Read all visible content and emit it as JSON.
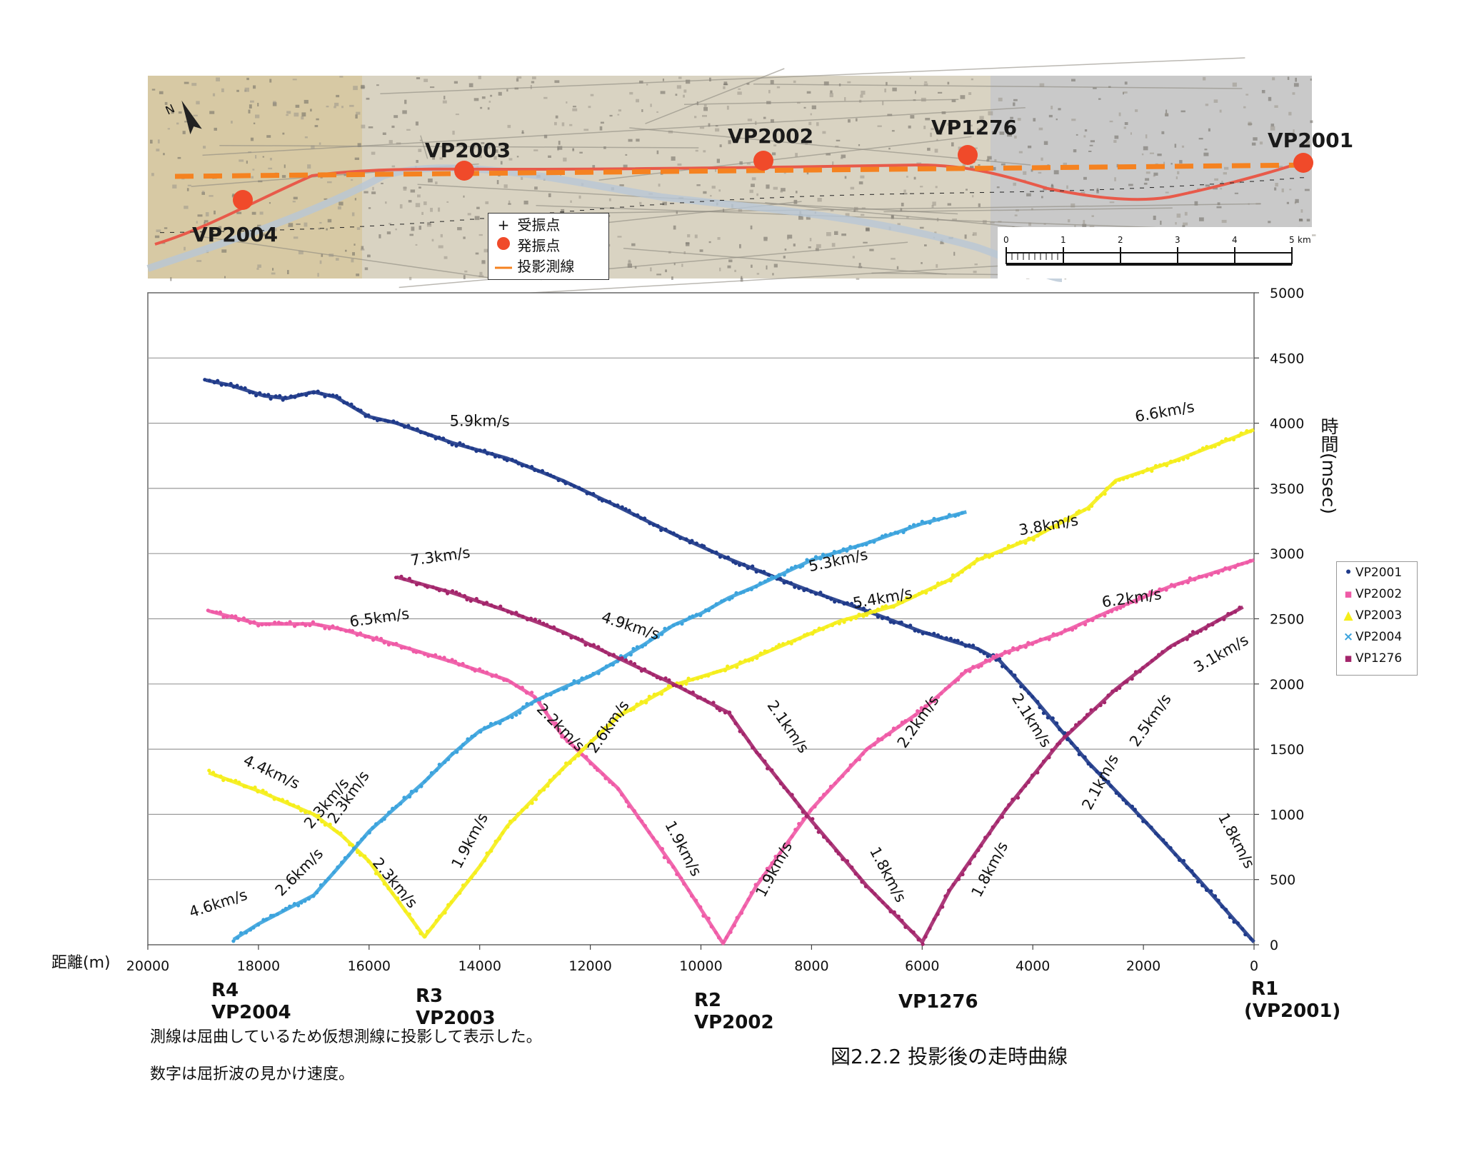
{
  "map": {
    "north_label": "N",
    "vp_labels": [
      "VP2004",
      "VP2003",
      "VP2002",
      "VP1276",
      "VP2001"
    ],
    "legend": {
      "receiver_symbol": "+",
      "receiver_label": "受振点",
      "source_label": "発振点",
      "line_label": "投影測線"
    },
    "scale": {
      "ticks": [
        "0",
        "1",
        "2",
        "3",
        "4",
        "5"
      ],
      "unit": "km"
    },
    "colors": {
      "source": "#f04a2a",
      "projected_line": "#f58220",
      "route": "#e85a4a"
    }
  },
  "chart_data": {
    "type": "scatter",
    "title": "",
    "xlabel": "距離(m)",
    "ylabel": "時間(msec)",
    "x_reversed": true,
    "xlim": [
      20000,
      0
    ],
    "ylim": [
      0,
      5000
    ],
    "x_ticks": [
      20000,
      18000,
      16000,
      14000,
      12000,
      10000,
      8000,
      6000,
      4000,
      2000,
      0
    ],
    "y_ticks": [
      0,
      500,
      1000,
      1500,
      2000,
      2500,
      3000,
      3500,
      4000,
      4500,
      5000
    ],
    "y_axis_side": "right",
    "grid": "horizontal",
    "legend_position": "right",
    "series": [
      {
        "name": "VP2001",
        "color": "#1f3a8a",
        "marker": "•",
        "points": [
          [
            18950,
            4330
          ],
          [
            18500,
            4290
          ],
          [
            17900,
            4210
          ],
          [
            17500,
            4190
          ],
          [
            17000,
            4240
          ],
          [
            16600,
            4200
          ],
          [
            16000,
            4050
          ],
          [
            15500,
            4000
          ],
          [
            14500,
            3850
          ],
          [
            13500,
            3730
          ],
          [
            12500,
            3560
          ],
          [
            11500,
            3360
          ],
          [
            10500,
            3150
          ],
          [
            9500,
            2960
          ],
          [
            8500,
            2790
          ],
          [
            8000,
            2710
          ],
          [
            7000,
            2560
          ],
          [
            6000,
            2400
          ],
          [
            5000,
            2270
          ],
          [
            4600,
            2180
          ],
          [
            4000,
            1900
          ],
          [
            3000,
            1400
          ],
          [
            2000,
            960
          ],
          [
            1000,
            500
          ],
          [
            0,
            20
          ]
        ]
      },
      {
        "name": "VP2002",
        "color": "#ef5aa6",
        "marker": "▪",
        "points": [
          [
            18900,
            2560
          ],
          [
            18000,
            2460
          ],
          [
            17000,
            2460
          ],
          [
            16500,
            2420
          ],
          [
            15500,
            2300
          ],
          [
            14500,
            2170
          ],
          [
            13500,
            2030
          ],
          [
            13000,
            1900
          ],
          [
            12500,
            1600
          ],
          [
            11500,
            1200
          ],
          [
            10500,
            600
          ],
          [
            9600,
            10
          ],
          [
            9000,
            450
          ],
          [
            8000,
            1040
          ],
          [
            7000,
            1500
          ],
          [
            6000,
            1800
          ],
          [
            5200,
            2100
          ],
          [
            4500,
            2240
          ],
          [
            3500,
            2390
          ],
          [
            2500,
            2580
          ],
          [
            1500,
            2750
          ],
          [
            0,
            2950
          ]
        ]
      },
      {
        "name": "VP2003",
        "color": "#f5ee1a",
        "marker": "▲",
        "points": [
          [
            18900,
            1320
          ],
          [
            18000,
            1180
          ],
          [
            17000,
            1000
          ],
          [
            16500,
            840
          ],
          [
            16000,
            640
          ],
          [
            15000,
            60
          ],
          [
            14000,
            600
          ],
          [
            13500,
            910
          ],
          [
            12500,
            1350
          ],
          [
            11500,
            1750
          ],
          [
            10500,
            1990
          ],
          [
            9500,
            2120
          ],
          [
            8500,
            2300
          ],
          [
            7500,
            2480
          ],
          [
            6500,
            2600
          ],
          [
            5500,
            2800
          ],
          [
            5000,
            2950
          ],
          [
            4000,
            3120
          ],
          [
            3000,
            3350
          ],
          [
            2500,
            3560
          ],
          [
            1500,
            3700
          ],
          [
            0,
            3950
          ]
        ]
      },
      {
        "name": "VP2004",
        "color": "#3ba3dd",
        "marker": "×",
        "points": [
          [
            18450,
            40
          ],
          [
            18000,
            160
          ],
          [
            17000,
            380
          ],
          [
            16500,
            620
          ],
          [
            16000,
            870
          ],
          [
            15500,
            1060
          ],
          [
            15000,
            1250
          ],
          [
            14500,
            1460
          ],
          [
            14000,
            1640
          ],
          [
            13500,
            1740
          ],
          [
            13000,
            1870
          ],
          [
            12500,
            1970
          ],
          [
            12000,
            2060
          ],
          [
            11500,
            2180
          ],
          [
            11000,
            2310
          ],
          [
            10500,
            2450
          ],
          [
            10000,
            2540
          ],
          [
            9500,
            2660
          ],
          [
            9000,
            2750
          ],
          [
            8500,
            2850
          ],
          [
            8000,
            2950
          ],
          [
            7000,
            3080
          ],
          [
            6000,
            3230
          ],
          [
            5200,
            3320
          ]
        ]
      },
      {
        "name": "VP1276",
        "color": "#a3256b",
        "marker": "▪",
        "points": [
          [
            15500,
            2820
          ],
          [
            14500,
            2700
          ],
          [
            13500,
            2560
          ],
          [
            12500,
            2400
          ],
          [
            11500,
            2200
          ],
          [
            10500,
            2000
          ],
          [
            9500,
            1780
          ],
          [
            9000,
            1480
          ],
          [
            8000,
            950
          ],
          [
            7000,
            450
          ],
          [
            6000,
            20
          ],
          [
            5500,
            420
          ],
          [
            4500,
            1030
          ],
          [
            3500,
            1560
          ],
          [
            2500,
            1960
          ],
          [
            1500,
            2290
          ],
          [
            200,
            2590
          ]
        ]
      }
    ],
    "annotations": [
      {
        "text": "5.9km/s",
        "x": 14000,
        "y": 3980,
        "rotate": 0
      },
      {
        "text": "6.6km/s",
        "x": 1600,
        "y": 4050,
        "rotate": -10
      },
      {
        "text": "3.8km/s",
        "x": 3700,
        "y": 3180,
        "rotate": -10
      },
      {
        "text": "5.3km/s",
        "x": 7500,
        "y": 2910,
        "rotate": -12
      },
      {
        "text": "5.4km/s",
        "x": 6700,
        "y": 2620,
        "rotate": -10
      },
      {
        "text": "7.3km/s",
        "x": 14700,
        "y": 2940,
        "rotate": -8
      },
      {
        "text": "6.5km/s",
        "x": 15800,
        "y": 2470,
        "rotate": -8
      },
      {
        "text": "6.2km/s",
        "x": 2200,
        "y": 2620,
        "rotate": -8
      },
      {
        "text": "4.9km/s",
        "x": 11300,
        "y": 2410,
        "rotate": 18
      },
      {
        "text": "3.1km/s",
        "x": 550,
        "y": 2200,
        "rotate": -30
      },
      {
        "text": "2.2km/s",
        "x": 12600,
        "y": 1640,
        "rotate": 45
      },
      {
        "text": "2.6km/s",
        "x": 11600,
        "y": 1650,
        "rotate": -55
      },
      {
        "text": "2.1km/s",
        "x": 8500,
        "y": 1650,
        "rotate": 55
      },
      {
        "text": "2.2km/s",
        "x": 6000,
        "y": 1690,
        "rotate": -55
      },
      {
        "text": "2.1km/s",
        "x": 4100,
        "y": 1700,
        "rotate": 58
      },
      {
        "text": "2.5km/s",
        "x": 1800,
        "y": 1700,
        "rotate": -55
      },
      {
        "text": "4.4km/s",
        "x": 17800,
        "y": 1290,
        "rotate": 25
      },
      {
        "text": "2.3km/s",
        "x": 16700,
        "y": 1060,
        "rotate": -50
      },
      {
        "text": "2.1km/s",
        "x": 2700,
        "y": 1230,
        "rotate": -62
      },
      {
        "text": "1.9km/s",
        "x": 14100,
        "y": 780,
        "rotate": -62
      },
      {
        "text": "1.9km/s",
        "x": 10400,
        "y": 720,
        "rotate": 62
      },
      {
        "text": "1.9km/s",
        "x": 8600,
        "y": 560,
        "rotate": -62
      },
      {
        "text": "1.8km/s",
        "x": 6700,
        "y": 520,
        "rotate": 62
      },
      {
        "text": "1.8km/s",
        "x": 4700,
        "y": 560,
        "rotate": -62
      },
      {
        "text": "1.8km/s",
        "x": 400,
        "y": 780,
        "rotate": 62
      },
      {
        "text": "2.6km/s",
        "x": 17200,
        "y": 530,
        "rotate": -45
      },
      {
        "text": "2.3km/s",
        "x": 15600,
        "y": 450,
        "rotate": 50
      },
      {
        "text": "2.3km/s",
        "x": 16300,
        "y": 1110,
        "rotate": -55
      },
      {
        "text": "4.6km/s",
        "x": 18700,
        "y": 280,
        "rotate": -18
      }
    ]
  },
  "stations": [
    {
      "line1": "R4",
      "line2": "VP2004"
    },
    {
      "line1": "R3",
      "line2": "VP2003"
    },
    {
      "line1": "R2",
      "line2": "VP2002"
    },
    {
      "line1": "VP1276",
      "line2": ""
    },
    {
      "line1": "R1",
      "line2": "(VP2001)"
    }
  ],
  "notes": {
    "line1": "測線は屈曲しているため仮想測線に投影して表示した。",
    "line2": "数字は屈折波の見かけ速度。"
  },
  "caption": "図2.2.2  投影後の走時曲線"
}
